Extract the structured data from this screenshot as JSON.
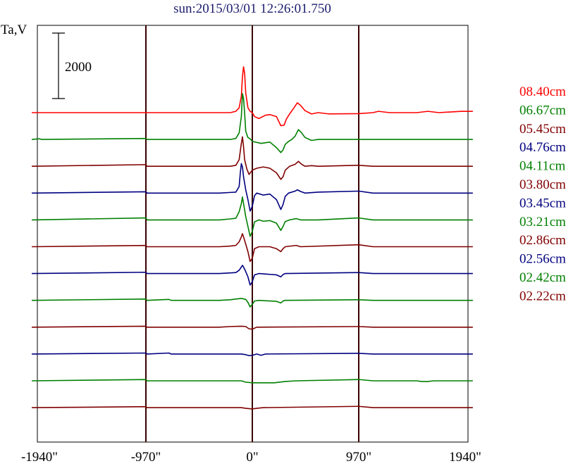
{
  "header": {
    "title": "sun:2015/03/01 12:26:01.750",
    "title_color": "#1c1c6e"
  },
  "chart_data": {
    "type": "line",
    "title": "sun:2015/03/01 12:26:01.750",
    "ylabel": "Ta,V",
    "xlabel": "",
    "scale_bar": {
      "value": 2000,
      "label": "2000"
    },
    "x_range": [
      -2010,
      2010
    ],
    "x_ticks": [
      {
        "value": -1940,
        "label": "-1940\""
      },
      {
        "value": -970,
        "label": "-970\""
      },
      {
        "value": 0,
        "label": "0\""
      },
      {
        "value": 970,
        "label": "970\""
      },
      {
        "value": 1940,
        "label": "1940\""
      }
    ],
    "x_gridlines": [
      -970,
      0,
      970
    ],
    "grid": "vertical",
    "legend_position": "right",
    "series": [
      {
        "name": "08.40cm",
        "color": "#ff0000",
        "points": [
          [
            -2010,
            0
          ],
          [
            -1980,
            0
          ],
          [
            -1960,
            0
          ],
          [
            -1950,
            0
          ],
          [
            -1920,
            0
          ],
          [
            -1060,
            0
          ],
          [
            -970,
            0
          ],
          [
            -960,
            0
          ],
          [
            -900,
            0
          ],
          [
            -700,
            0
          ],
          [
            -650,
            0
          ],
          [
            -400,
            0
          ],
          [
            -300,
            0
          ],
          [
            -200,
            0
          ],
          [
            -150,
            40
          ],
          [
            -120,
            150
          ],
          [
            -100,
            500
          ],
          [
            -90,
            1100
          ],
          [
            -80,
            1400
          ],
          [
            -70,
            1200
          ],
          [
            -60,
            600
          ],
          [
            -40,
            150
          ],
          [
            -20,
            40
          ],
          [
            0,
            0
          ],
          [
            20,
            -120
          ],
          [
            60,
            -180
          ],
          [
            120,
            -80
          ],
          [
            160,
            -60
          ],
          [
            220,
            -120
          ],
          [
            260,
            -400
          ],
          [
            290,
            -380
          ],
          [
            310,
            -200
          ],
          [
            340,
            -40
          ],
          [
            380,
            150
          ],
          [
            410,
            300
          ],
          [
            440,
            220
          ],
          [
            480,
            60
          ],
          [
            540,
            -40
          ],
          [
            600,
            0
          ],
          [
            700,
            -40
          ],
          [
            970,
            -30
          ],
          [
            1100,
            0
          ],
          [
            1150,
            40
          ],
          [
            1250,
            0
          ],
          [
            1500,
            0
          ],
          [
            1600,
            40
          ],
          [
            1700,
            0
          ],
          [
            1900,
            40
          ],
          [
            2010,
            40
          ]
        ]
      },
      {
        "name": "06.67cm",
        "color": "#008000",
        "points": [
          [
            -2010,
            0
          ],
          [
            -1940,
            20
          ],
          [
            -1920,
            0
          ],
          [
            -970,
            30
          ],
          [
            -960,
            0
          ],
          [
            -300,
            0
          ],
          [
            -200,
            0
          ],
          [
            -150,
            30
          ],
          [
            -120,
            200
          ],
          [
            -100,
            700
          ],
          [
            -90,
            1400
          ],
          [
            -80,
            1250
          ],
          [
            -70,
            800
          ],
          [
            -60,
            250
          ],
          [
            -40,
            60
          ],
          [
            -20,
            20
          ],
          [
            0,
            -60
          ],
          [
            80,
            -120
          ],
          [
            160,
            -80
          ],
          [
            220,
            -250
          ],
          [
            260,
            -400
          ],
          [
            280,
            -320
          ],
          [
            300,
            -150
          ],
          [
            330,
            -60
          ],
          [
            360,
            0
          ],
          [
            390,
            100
          ],
          [
            420,
            300
          ],
          [
            450,
            200
          ],
          [
            480,
            60
          ],
          [
            540,
            -30
          ],
          [
            600,
            0
          ],
          [
            970,
            0
          ],
          [
            1100,
            0
          ],
          [
            1500,
            0
          ],
          [
            2010,
            0
          ]
        ]
      },
      {
        "name": "05.45cm",
        "color": "#800000",
        "points": [
          [
            -2010,
            0
          ],
          [
            -970,
            50
          ],
          [
            -960,
            0
          ],
          [
            -300,
            0
          ],
          [
            -200,
            0
          ],
          [
            -150,
            30
          ],
          [
            -120,
            200
          ],
          [
            -100,
            700
          ],
          [
            -90,
            900
          ],
          [
            -80,
            600
          ],
          [
            -70,
            200
          ],
          [
            -50,
            -80
          ],
          [
            -30,
            -250
          ],
          [
            0,
            -120
          ],
          [
            40,
            -60
          ],
          [
            100,
            -20
          ],
          [
            160,
            -60
          ],
          [
            220,
            -200
          ],
          [
            260,
            -400
          ],
          [
            280,
            -320
          ],
          [
            300,
            -120
          ],
          [
            340,
            0
          ],
          [
            390,
            60
          ],
          [
            420,
            150
          ],
          [
            450,
            60
          ],
          [
            480,
            0
          ],
          [
            540,
            20
          ],
          [
            600,
            0
          ],
          [
            970,
            30
          ],
          [
            1100,
            0
          ],
          [
            2010,
            0
          ]
        ]
      },
      {
        "name": "04.76cm",
        "color": "#000080",
        "points": [
          [
            -2010,
            0
          ],
          [
            -970,
            40
          ],
          [
            -960,
            0
          ],
          [
            -300,
            0
          ],
          [
            -200,
            20
          ],
          [
            -150,
            30
          ],
          [
            -120,
            200
          ],
          [
            -110,
            600
          ],
          [
            -100,
            900
          ],
          [
            -90,
            800
          ],
          [
            -80,
            500
          ],
          [
            -60,
            100
          ],
          [
            -40,
            -200
          ],
          [
            -20,
            -550
          ],
          [
            0,
            -400
          ],
          [
            20,
            -80
          ],
          [
            40,
            0
          ],
          [
            100,
            -60
          ],
          [
            160,
            -30
          ],
          [
            220,
            -200
          ],
          [
            260,
            -500
          ],
          [
            280,
            -350
          ],
          [
            300,
            -100
          ],
          [
            330,
            0
          ],
          [
            390,
            60
          ],
          [
            410,
            100
          ],
          [
            440,
            50
          ],
          [
            480,
            0
          ],
          [
            600,
            30
          ],
          [
            970,
            60
          ],
          [
            1100,
            0
          ],
          [
            2010,
            0
          ]
        ]
      },
      {
        "name": "04.11cm",
        "color": "#008000",
        "points": [
          [
            -2010,
            0
          ],
          [
            -970,
            60
          ],
          [
            -960,
            0
          ],
          [
            -300,
            0
          ],
          [
            -200,
            30
          ],
          [
            -150,
            50
          ],
          [
            -120,
            250
          ],
          [
            -100,
            500
          ],
          [
            -90,
            700
          ],
          [
            -80,
            500
          ],
          [
            -60,
            100
          ],
          [
            -40,
            -200
          ],
          [
            -20,
            -500
          ],
          [
            0,
            -350
          ],
          [
            20,
            -60
          ],
          [
            60,
            0
          ],
          [
            100,
            -40
          ],
          [
            160,
            -20
          ],
          [
            220,
            -100
          ],
          [
            260,
            -320
          ],
          [
            280,
            -200
          ],
          [
            300,
            -50
          ],
          [
            340,
            0
          ],
          [
            400,
            40
          ],
          [
            440,
            0
          ],
          [
            600,
            0
          ],
          [
            970,
            60
          ],
          [
            1100,
            0
          ],
          [
            2010,
            0
          ]
        ]
      },
      {
        "name": "03.80cm",
        "color": "#800000",
        "points": [
          [
            -2010,
            0
          ],
          [
            -970,
            40
          ],
          [
            -960,
            0
          ],
          [
            -300,
            0
          ],
          [
            -200,
            20
          ],
          [
            -150,
            40
          ],
          [
            -120,
            150
          ],
          [
            -100,
            300
          ],
          [
            -90,
            400
          ],
          [
            -80,
            300
          ],
          [
            -60,
            80
          ],
          [
            -40,
            -150
          ],
          [
            -20,
            -450
          ],
          [
            0,
            -350
          ],
          [
            20,
            -60
          ],
          [
            60,
            0
          ],
          [
            160,
            0
          ],
          [
            220,
            -60
          ],
          [
            260,
            -150
          ],
          [
            280,
            -60
          ],
          [
            300,
            0
          ],
          [
            400,
            40
          ],
          [
            440,
            0
          ],
          [
            970,
            60
          ],
          [
            1100,
            0
          ],
          [
            2010,
            0
          ]
        ]
      },
      {
        "name": "03.45cm",
        "color": "#000080",
        "points": [
          [
            -2010,
            0
          ],
          [
            -970,
            40
          ],
          [
            -960,
            0
          ],
          [
            -300,
            0
          ],
          [
            -200,
            20
          ],
          [
            -150,
            30
          ],
          [
            -120,
            100
          ],
          [
            -100,
            200
          ],
          [
            -90,
            250
          ],
          [
            -80,
            200
          ],
          [
            -60,
            60
          ],
          [
            -40,
            -100
          ],
          [
            -20,
            -350
          ],
          [
            0,
            -250
          ],
          [
            20,
            -40
          ],
          [
            60,
            0
          ],
          [
            220,
            -40
          ],
          [
            260,
            -100
          ],
          [
            280,
            -30
          ],
          [
            300,
            0
          ],
          [
            970,
            30
          ],
          [
            1100,
            0
          ],
          [
            2010,
            0
          ]
        ]
      },
      {
        "name": "03.21cm",
        "color": "#008000",
        "points": [
          [
            -2010,
            0
          ],
          [
            -970,
            40
          ],
          [
            -960,
            0
          ],
          [
            -760,
            30
          ],
          [
            -740,
            0
          ],
          [
            -300,
            0
          ],
          [
            -200,
            20
          ],
          [
            -150,
            40
          ],
          [
            -100,
            60
          ],
          [
            -60,
            30
          ],
          [
            -40,
            -60
          ],
          [
            -20,
            -200
          ],
          [
            0,
            -120
          ],
          [
            20,
            -20
          ],
          [
            60,
            0
          ],
          [
            220,
            -30
          ],
          [
            260,
            -80
          ],
          [
            280,
            -20
          ],
          [
            300,
            0
          ],
          [
            970,
            20
          ],
          [
            1100,
            0
          ],
          [
            2010,
            0
          ]
        ]
      },
      {
        "name": "02.86cm",
        "color": "#800000",
        "points": [
          [
            -2010,
            0
          ],
          [
            -970,
            30
          ],
          [
            -960,
            0
          ],
          [
            -300,
            0
          ],
          [
            -200,
            20
          ],
          [
            -100,
            30
          ],
          [
            -60,
            20
          ],
          [
            -30,
            -50
          ],
          [
            0,
            -60
          ],
          [
            40,
            0
          ],
          [
            970,
            20
          ],
          [
            1100,
            0
          ],
          [
            2010,
            0
          ]
        ]
      },
      {
        "name": "02.56cm",
        "color": "#000080",
        "points": [
          [
            -2010,
            0
          ],
          [
            -970,
            30
          ],
          [
            -960,
            0
          ],
          [
            -760,
            30
          ],
          [
            -740,
            0
          ],
          [
            -400,
            0
          ],
          [
            -300,
            0
          ],
          [
            -100,
            0
          ],
          [
            -60,
            -20
          ],
          [
            -30,
            -50
          ],
          [
            0,
            -40
          ],
          [
            40,
            0
          ],
          [
            80,
            -40
          ],
          [
            120,
            0
          ],
          [
            970,
            20
          ],
          [
            1100,
            0
          ],
          [
            2010,
            0
          ]
        ]
      },
      {
        "name": "02.42cm",
        "color": "#008000",
        "points": [
          [
            -2010,
            0
          ],
          [
            -970,
            40
          ],
          [
            -960,
            0
          ],
          [
            -300,
            0
          ],
          [
            -100,
            0
          ],
          [
            -60,
            -40
          ],
          [
            0,
            -60
          ],
          [
            40,
            -60
          ],
          [
            200,
            -60
          ],
          [
            300,
            -20
          ],
          [
            400,
            0
          ],
          [
            970,
            40
          ],
          [
            1100,
            0
          ],
          [
            1500,
            0
          ],
          [
            1540,
            -20
          ],
          [
            1600,
            -20
          ],
          [
            1650,
            0
          ],
          [
            2010,
            0
          ]
        ]
      },
      {
        "name": "02.22cm",
        "color": "#800000",
        "points": [
          [
            -2010,
            0
          ],
          [
            -970,
            30
          ],
          [
            -960,
            0
          ],
          [
            -300,
            0
          ],
          [
            -100,
            0
          ],
          [
            -60,
            -20
          ],
          [
            0,
            -40
          ],
          [
            40,
            -20
          ],
          [
            100,
            0
          ],
          [
            970,
            40
          ],
          [
            1100,
            0
          ],
          [
            2010,
            0
          ]
        ]
      }
    ]
  }
}
